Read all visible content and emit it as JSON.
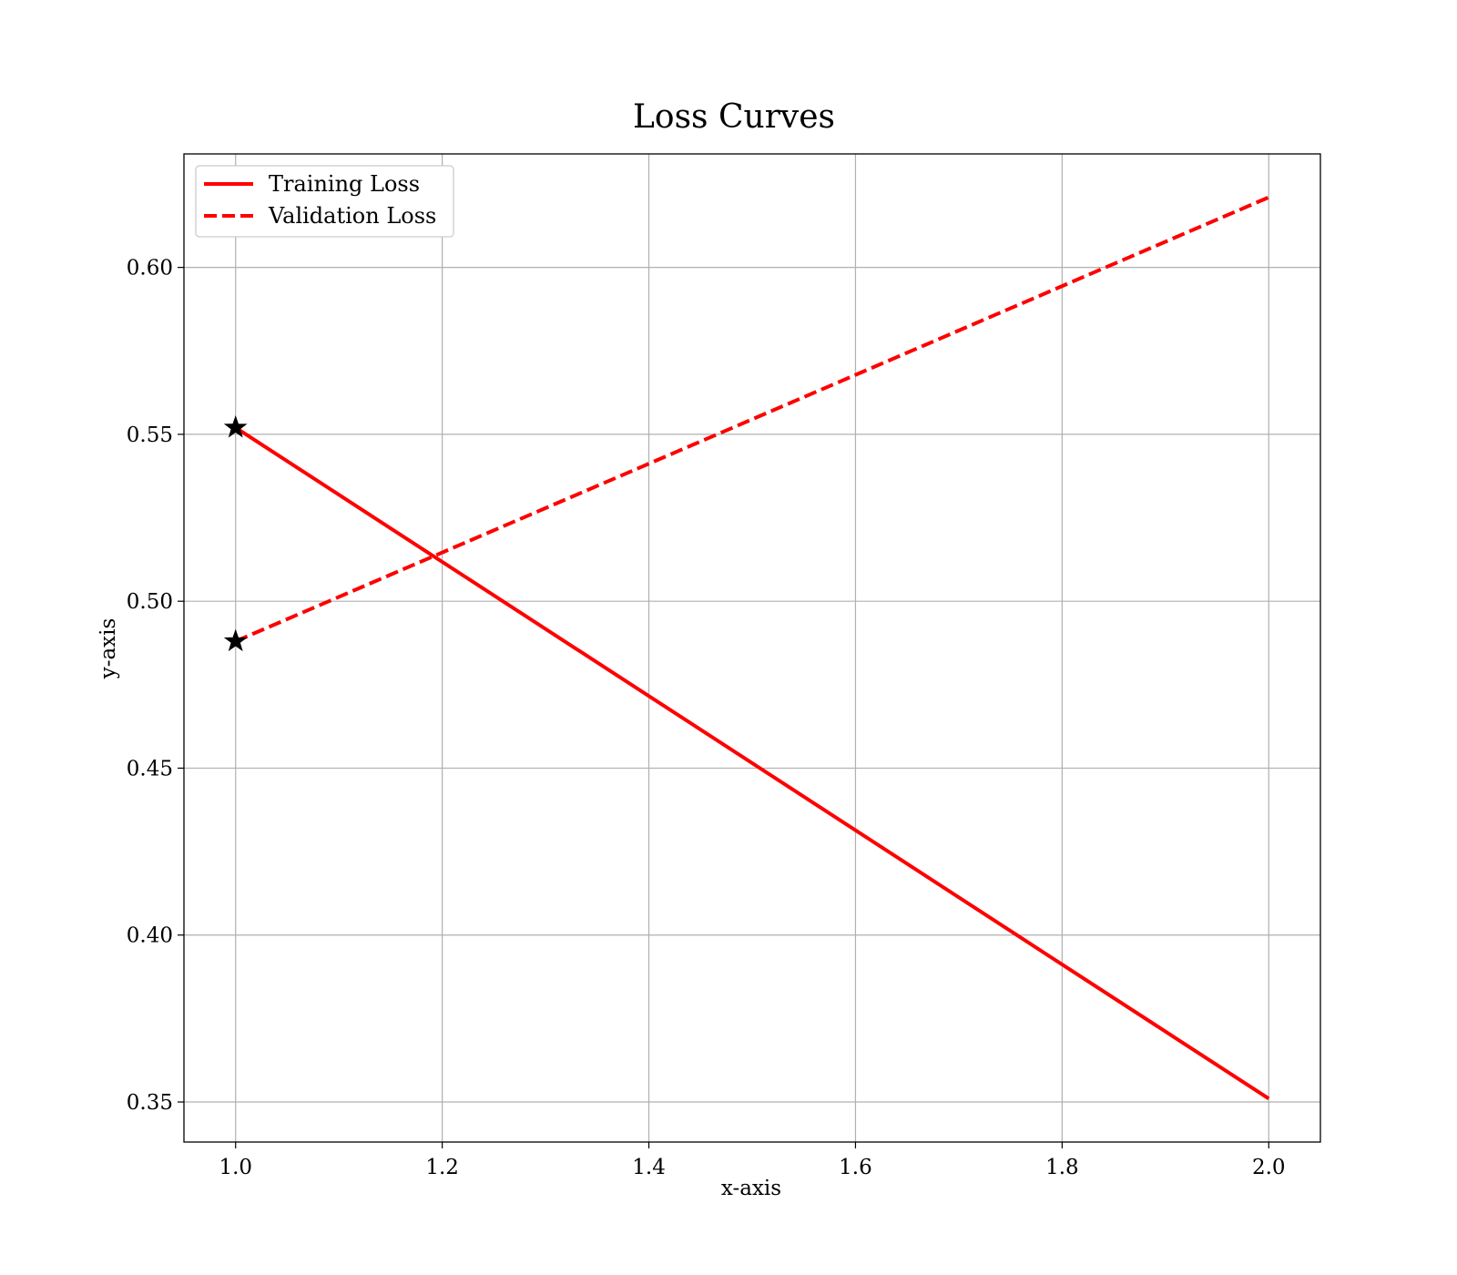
{
  "chart_data": {
    "type": "line",
    "title": "Loss Curves",
    "xlabel": "x-axis",
    "ylabel": "y-axis",
    "xlim": [
      0.95,
      2.05
    ],
    "ylim": [
      0.338,
      0.634
    ],
    "xticks": [
      1.0,
      1.2,
      1.4,
      1.6,
      1.8,
      2.0
    ],
    "xtick_labels": [
      "1.0",
      "1.2",
      "1.4",
      "1.6",
      "1.8",
      "2.0"
    ],
    "yticks": [
      0.35,
      0.4,
      0.45,
      0.5,
      0.55,
      0.6
    ],
    "ytick_labels": [
      "0.35",
      "0.40",
      "0.45",
      "0.50",
      "0.55",
      "0.60"
    ],
    "grid": true,
    "legend_position": "top-left",
    "series": [
      {
        "name": "Training Loss",
        "x": [
          1.0,
          2.0
        ],
        "y": [
          0.552,
          0.351
        ],
        "color": "#ff0000",
        "line_style": "solid",
        "start_marker": "star"
      },
      {
        "name": "Validation Loss",
        "x": [
          1.0,
          2.0
        ],
        "y": [
          0.488,
          0.621
        ],
        "color": "#ff0000",
        "line_style": "dashed",
        "start_marker": "star"
      }
    ]
  }
}
